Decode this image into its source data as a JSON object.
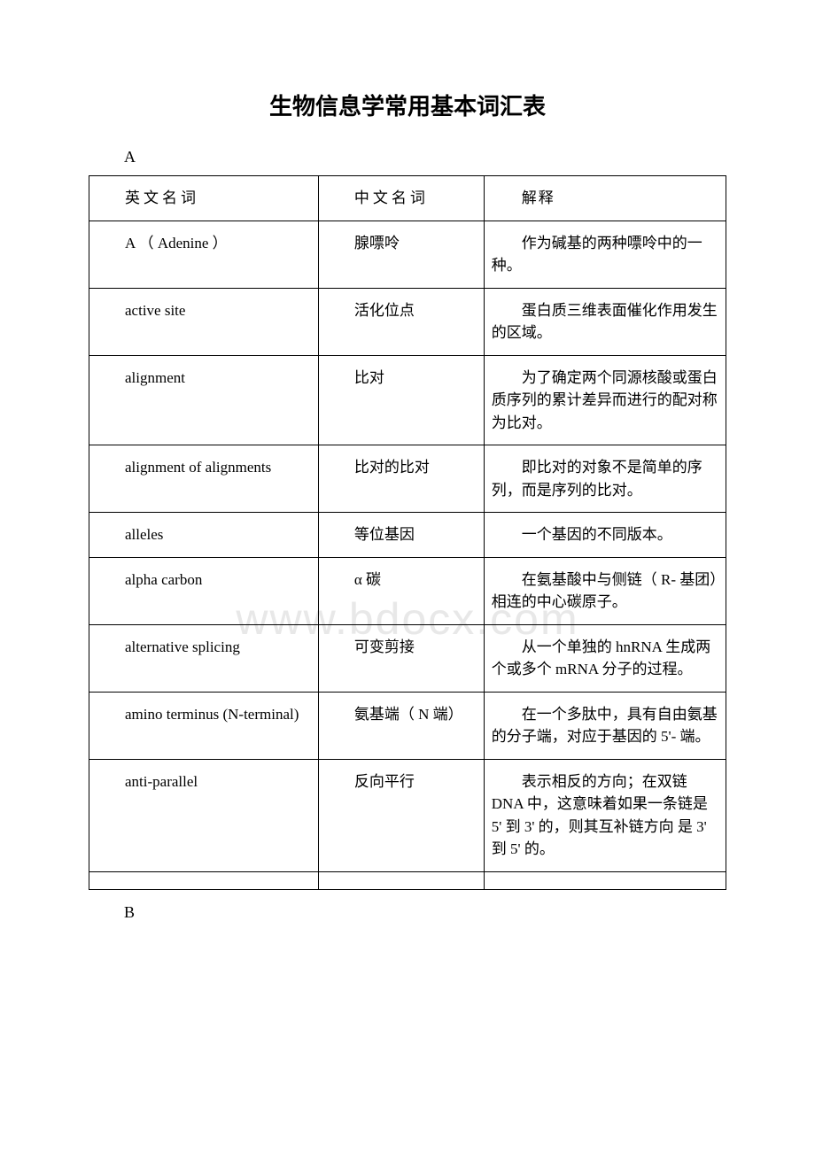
{
  "title": "生物信息学常用基本词汇表",
  "watermark": "www.bdocx.com",
  "sections": {
    "a": "A",
    "b": "B"
  },
  "headers": {
    "english": "英文名词",
    "chinese": "中文名词",
    "explain": "解释"
  },
  "rows": [
    {
      "en": "A （ Adenine ）",
      "cn": "腺嘌呤",
      "expl": "作为碱基的两种嘌呤中的一种。"
    },
    {
      "en": "active site",
      "cn": "活化位点",
      "expl": "蛋白质三维表面催化作用发生的区域。"
    },
    {
      "en": "alignment",
      "cn": "比对",
      "expl": "为了确定两个同源核酸或蛋白质序列的累计差异而进行的配对称为比对。"
    },
    {
      "en": "alignment of alignments",
      "cn": "比对的比对",
      "expl": "即比对的对象不是简单的序列，而是序列的比对。"
    },
    {
      "en": "alleles",
      "cn": "等位基因",
      "expl": "一个基因的不同版本。"
    },
    {
      "en": "alpha carbon",
      "cn": "α 碳",
      "expl": "在氨基酸中与侧链（ R- 基团）相连的中心碳原子。"
    },
    {
      "en": "alternative splicing",
      "cn": "可变剪接",
      "expl": "从一个单独的 hnRNA 生成两个或多个 mRNA 分子的过程。"
    },
    {
      "en": "amino terminus (N-terminal)",
      "cn": "氨基端（ N 端）",
      "expl": "在一个多肽中，具有自由氨基的分子端，对应于基因的 5'- 端。"
    },
    {
      "en": "anti-parallel",
      "cn": "反向平行",
      "expl": "表示相反的方向；在双链 DNA 中，这意味着如果一条链是 5' 到 3' 的，则其互补链方向 是 3' 到 5' 的。"
    }
  ]
}
